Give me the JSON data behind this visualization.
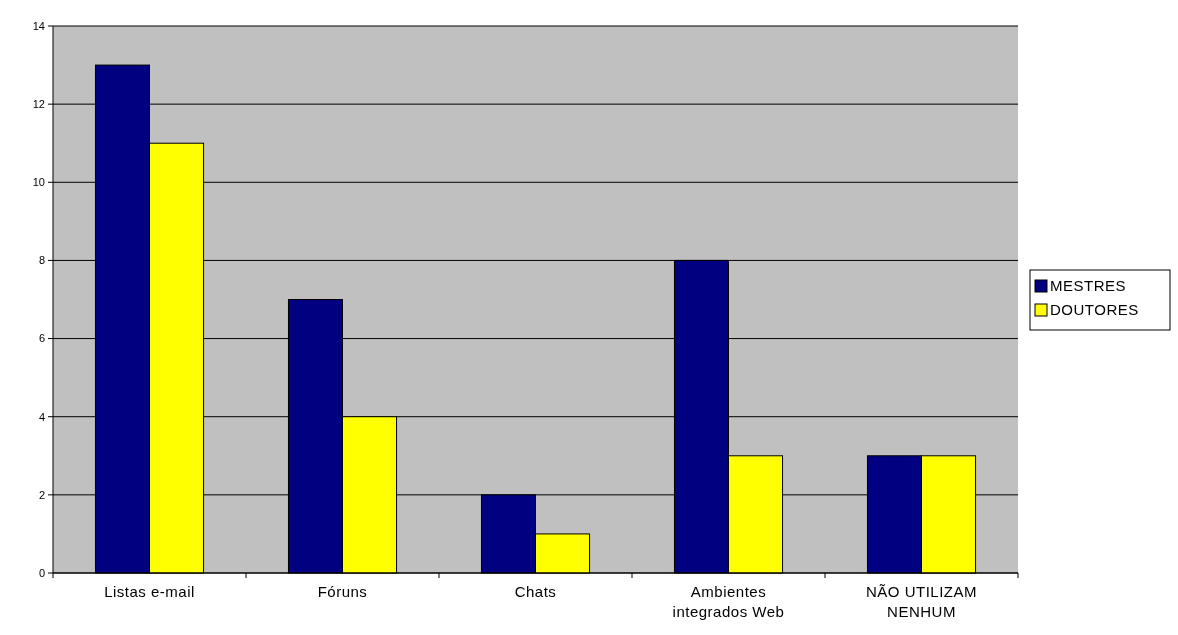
{
  "chart_data": {
    "type": "bar",
    "categories": [
      "Listas e-mail",
      "Fóruns",
      "Chats",
      "Ambientes integrados Web",
      "NÃO UTILIZAM NENHUM"
    ],
    "series": [
      {
        "name": "MESTRES",
        "color": "#000080",
        "values": [
          13,
          7,
          2,
          8,
          3
        ]
      },
      {
        "name": "DOUTORES",
        "color": "#ffff00",
        "values": [
          11,
          4,
          1,
          3,
          3
        ]
      }
    ],
    "ylim": [
      0,
      14
    ],
    "yticks": [
      0,
      2,
      4,
      6,
      8,
      10,
      12,
      14
    ],
    "grid": "y",
    "legend": "right"
  }
}
